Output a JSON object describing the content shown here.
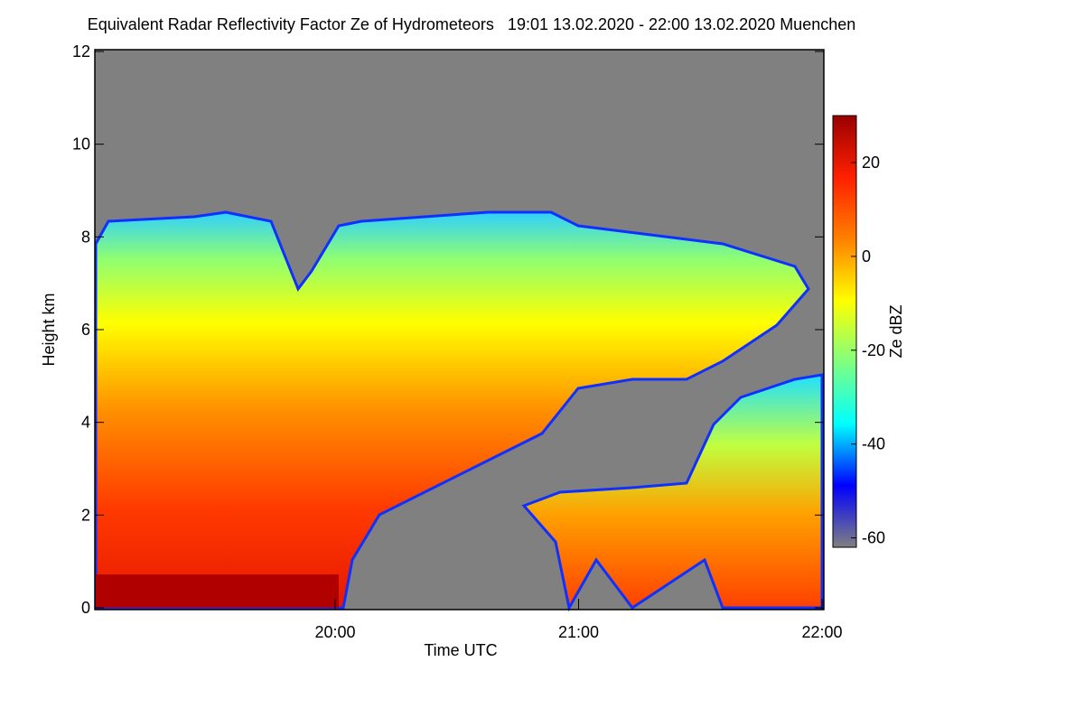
{
  "chart_data": {
    "type": "heatmap",
    "title": "Equivalent Radar Reflectivity Factor Ze of Hydrometeors   19:01 13.02.2020 - 22:00 13.02.2020 Muenchen",
    "xlabel": "Time UTC",
    "ylabel": "Height km",
    "xlim": [
      "19:01",
      "22:00"
    ],
    "xticks": [
      "20:00",
      "21:00",
      "22:00"
    ],
    "ylim": [
      0,
      12
    ],
    "yticks": [
      0,
      2,
      4,
      6,
      8,
      10,
      12
    ],
    "colorbar": {
      "label": "Ze dBZ",
      "lim": [
        -62,
        30
      ],
      "ticks": [
        -60,
        -40,
        -20,
        0,
        20
      ],
      "colors": [
        "#808080",
        "#0000ff",
        "#00ffff",
        "#80ff80",
        "#ffff00",
        "#ff8000",
        "#ff2000",
        "#990000"
      ]
    }
  }
}
